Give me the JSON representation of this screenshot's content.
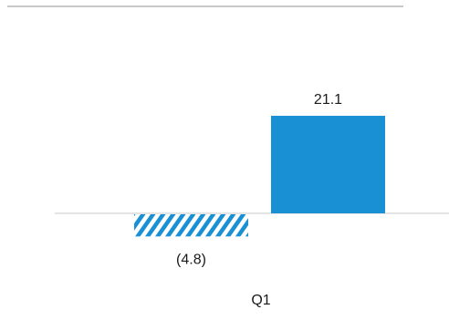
{
  "chart_data": {
    "type": "bar",
    "categories": [
      "Q1"
    ],
    "series": [
      {
        "values": [
          -4.8
        ],
        "pattern": "hatched"
      },
      {
        "values": [
          21.1
        ],
        "pattern": "solid"
      }
    ],
    "data_labels": [
      "(4.8)",
      "21.1"
    ],
    "colors": {
      "bar": "#1a90d4",
      "axis": "#c8c8c8",
      "text": "#1a1a1a"
    },
    "grid": false,
    "legend": "none"
  }
}
